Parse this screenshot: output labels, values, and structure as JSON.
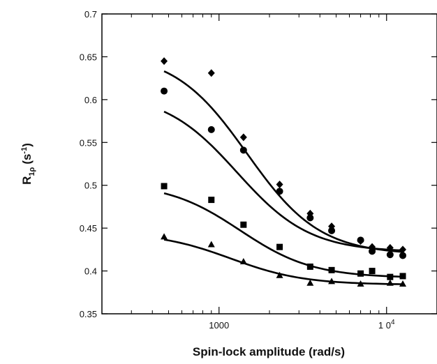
{
  "chart_data": {
    "type": "scatter",
    "x_scale": "log",
    "xlabel": "Spin-lock amplitude (rad/s)",
    "ylabel": {
      "main": "R",
      "sub": "1ρ",
      "unit": "(s",
      "unit_sup": "-1",
      "unit_close": ")"
    },
    "xlim": [
      200,
      20000
    ],
    "ylim": [
      0.35,
      0.7
    ],
    "yticks": [
      0.35,
      0.4,
      0.45,
      0.5,
      0.55,
      0.6,
      0.65,
      0.7
    ],
    "ytick_labels": [
      "0.35",
      "0.4",
      "0.45",
      "0.5",
      "0.55",
      "0.6",
      "0.65",
      "0.7"
    ],
    "xticks_major": [
      {
        "value": 1000,
        "label": "1000"
      },
      {
        "value": 10000,
        "label": "1 0",
        "sup": "4"
      }
    ],
    "xticks_minor": [
      300,
      400,
      500,
      600,
      700,
      800,
      900,
      2000,
      3000,
      4000,
      5000,
      6000,
      7000,
      8000,
      9000,
      20000
    ],
    "grid": false,
    "series": [
      {
        "marker": "diamond",
        "x": [
          470,
          900,
          1400,
          2300,
          3500,
          4700,
          7000,
          8200,
          10500,
          12500
        ],
        "y": [
          0.645,
          0.631,
          0.556,
          0.501,
          0.467,
          0.452,
          0.435,
          0.428,
          0.427,
          0.425
        ],
        "fit": {
          "r0": 0.419,
          "a": 0.236,
          "tau": 0.00068
        }
      },
      {
        "marker": "circle",
        "x": [
          470,
          900,
          1400,
          2300,
          3500,
          4700,
          7000,
          8200,
          10500,
          12500
        ],
        "y": [
          0.61,
          0.565,
          0.541,
          0.493,
          0.462,
          0.447,
          0.436,
          0.423,
          0.419,
          0.418
        ],
        "fit": {
          "r0": 0.422,
          "a": 0.186,
          "tau": 0.00078
        }
      },
      {
        "marker": "square",
        "x": [
          470,
          900,
          1400,
          2300,
          3500,
          4700,
          7000,
          8200,
          10500,
          12500
        ],
        "y": [
          0.499,
          0.483,
          0.454,
          0.428,
          0.405,
          0.401,
          0.397,
          0.4,
          0.393,
          0.394
        ],
        "fit": {
          "r0": 0.392,
          "a": 0.111,
          "tau": 0.00075
        }
      },
      {
        "marker": "triangle",
        "x": [
          470,
          900,
          1400,
          2300,
          3500,
          4700,
          7000,
          10500,
          12500
        ],
        "y": [
          0.44,
          0.431,
          0.411,
          0.395,
          0.386,
          0.388,
          0.385,
          0.386,
          0.385
        ],
        "fit": {
          "r0": 0.384,
          "a": 0.061,
          "tau": 0.00085
        }
      }
    ]
  }
}
